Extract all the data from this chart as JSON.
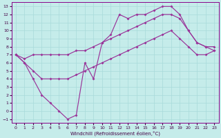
{
  "xlabel": "Windchill (Refroidissement éolien,°C)",
  "xlim": [
    -0.5,
    23.5
  ],
  "ylim": [
    -1.5,
    13.5
  ],
  "xticks": [
    0,
    1,
    2,
    3,
    4,
    5,
    6,
    7,
    8,
    9,
    10,
    11,
    12,
    13,
    14,
    15,
    16,
    17,
    18,
    19,
    20,
    21,
    22,
    23
  ],
  "yticks": [
    -1,
    0,
    1,
    2,
    3,
    4,
    5,
    6,
    7,
    8,
    9,
    10,
    11,
    12,
    13
  ],
  "bg_color": "#c5ecea",
  "grid_color": "#a8dada",
  "line_color": "#993399",
  "curve1_x": [
    0,
    1,
    2,
    3,
    4,
    5,
    6,
    7,
    8,
    9,
    10,
    11,
    12,
    13,
    14,
    15,
    16,
    17,
    18,
    19,
    20,
    21,
    22,
    23
  ],
  "curve1_y": [
    7,
    6,
    4,
    2,
    1,
    0,
    -1,
    -0.5,
    6,
    4,
    8.5,
    9.5,
    12,
    11.5,
    12,
    12,
    12.5,
    13,
    13,
    12,
    10,
    8.5,
    8,
    7.5
  ],
  "curve2_x": [
    0,
    1,
    2,
    3,
    4,
    5,
    6,
    7,
    8,
    9,
    10,
    11,
    12,
    13,
    14,
    15,
    16,
    17,
    18,
    19,
    20,
    21,
    22,
    23
  ],
  "curve2_y": [
    7,
    6.5,
    7,
    7,
    7,
    7,
    7,
    7.5,
    7.5,
    8,
    8.5,
    9,
    9.5,
    10,
    10.5,
    11,
    11.5,
    12,
    12,
    11.5,
    10,
    8.5,
    8,
    8
  ],
  "curve3_x": [
    0,
    1,
    2,
    3,
    4,
    5,
    6,
    7,
    8,
    9,
    10,
    11,
    12,
    13,
    14,
    15,
    16,
    17,
    18,
    19,
    20,
    21,
    22,
    23
  ],
  "curve3_y": [
    7,
    6,
    5,
    4,
    4,
    4,
    4,
    4.5,
    5,
    5.5,
    6,
    6.5,
    7,
    7.5,
    8,
    8.5,
    9,
    9.5,
    10,
    9,
    8,
    7,
    7,
    7.5
  ]
}
